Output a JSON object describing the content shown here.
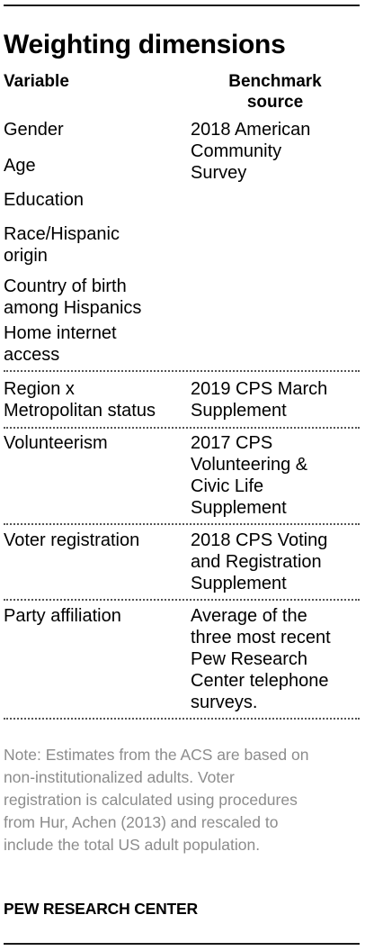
{
  "title": "Weighting dimensions",
  "headers": {
    "variable": "Variable",
    "source_line1": "Benchmark",
    "source_line2": "source"
  },
  "rows": [
    {
      "variables": [
        [
          "Gender"
        ],
        [
          "Age"
        ],
        [
          "Education"
        ],
        [
          "Race/Hispanic",
          "origin"
        ],
        [
          "Country of birth",
          "among Hispanics"
        ],
        [
          "Home internet",
          "access"
        ]
      ],
      "source": [
        "2018 American",
        "Community",
        "Survey"
      ]
    },
    {
      "variables": [
        [
          "Region x",
          "Metropolitan status"
        ]
      ],
      "source": [
        "2019 CPS March",
        "Supplement"
      ]
    },
    {
      "variables": [
        [
          "Volunteerism"
        ]
      ],
      "source": [
        "2017 CPS",
        "Volunteering &",
        "Civic Life",
        "Supplement"
      ]
    },
    {
      "variables": [
        [
          "Voter registration"
        ]
      ],
      "source": [
        "2018 CPS Voting",
        "and Registration",
        "Supplement"
      ]
    },
    {
      "variables": [
        [
          "Party affiliation"
        ]
      ],
      "source": [
        "Average of the",
        "three most recent",
        "Pew Research",
        "Center telephone",
        "surveys."
      ]
    }
  ],
  "note": [
    "Note: Estimates from the ACS are based on",
    "non-institutionalized adults. Voter",
    "registration is calculated using procedures",
    "from Hur, Achen (2013) and rescaled to",
    "include the total US adult population."
  ],
  "footer": "PEW RESEARCH CENTER"
}
